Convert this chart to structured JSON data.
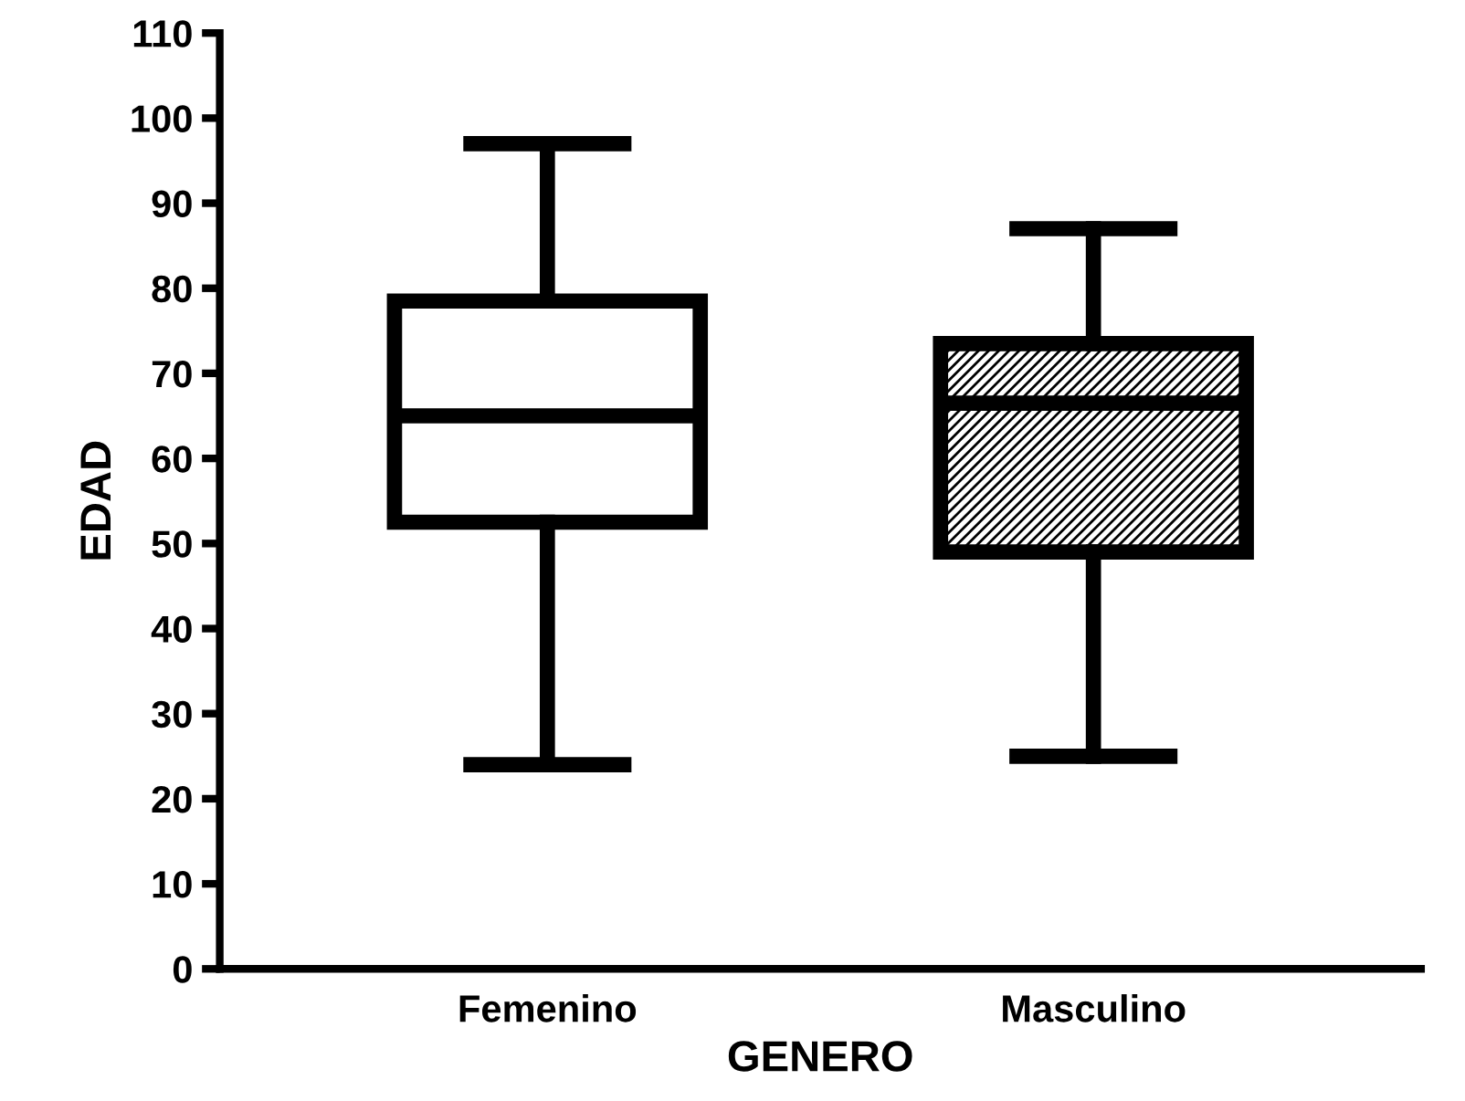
{
  "chart_data": {
    "type": "box",
    "xlabel": "GENERO",
    "ylabel": "EDAD",
    "categories": [
      "Femenino",
      "Masculino"
    ],
    "boxes": [
      {
        "low": 24,
        "q1": 52.5,
        "median": 65,
        "q3": 78.5,
        "high": 97
      },
      {
        "low": 25,
        "q1": 49,
        "median": 66.5,
        "q3": 73.5,
        "high": 87
      }
    ],
    "ylim": [
      0,
      110
    ],
    "yticks": [
      0,
      10,
      20,
      30,
      40,
      50,
      60,
      70,
      80,
      90,
      100,
      110
    ],
    "grid": false
  }
}
